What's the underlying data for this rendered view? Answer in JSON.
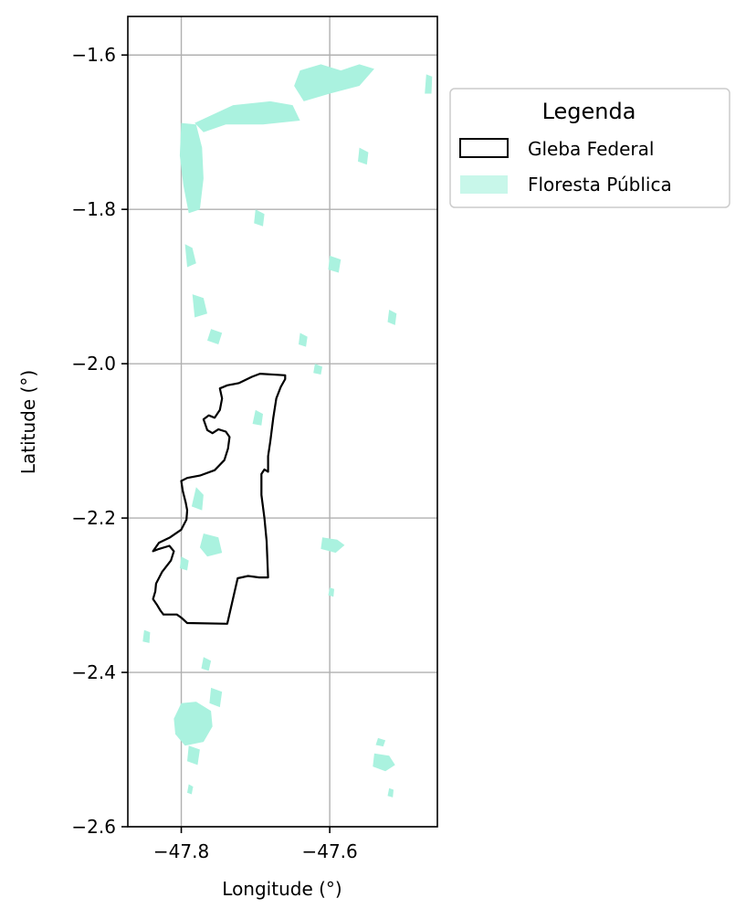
{
  "map": {
    "xlabel": "Longitude (°)",
    "ylabel": "Latitude (°)",
    "xlim": [
      -47.872,
      -47.455
    ],
    "ylim": [
      -2.6,
      -1.55
    ],
    "x_ticks": [
      -47.8,
      -47.6
    ],
    "x_tick_labels": [
      "−47.8",
      "−47.6"
    ],
    "y_ticks": [
      -1.6,
      -1.8,
      -2.0,
      -2.2,
      -2.4,
      -2.6
    ],
    "y_tick_labels": [
      "−1.6",
      "−1.8",
      "−2.0",
      "−2.2",
      "−2.4",
      "−2.6"
    ],
    "grid": true,
    "colors": {
      "forest": "#aaf2df",
      "gleba": "#000000",
      "grid": "#b0b0b0"
    },
    "gleba_federal": [
      [
        -47.694,
        -2.013
      ],
      [
        -47.66,
        -2.015
      ],
      [
        -47.66,
        -2.02
      ],
      [
        -47.666,
        -2.03
      ],
      [
        -47.672,
        -2.045
      ],
      [
        -47.676,
        -2.07
      ],
      [
        -47.68,
        -2.1
      ],
      [
        -47.683,
        -2.12
      ],
      [
        -47.683,
        -2.14
      ],
      [
        -47.688,
        -2.137
      ],
      [
        -47.692,
        -2.143
      ],
      [
        -47.692,
        -2.17
      ],
      [
        -47.688,
        -2.2
      ],
      [
        -47.685,
        -2.23
      ],
      [
        -47.683,
        -2.277
      ],
      [
        -47.695,
        -2.277
      ],
      [
        -47.71,
        -2.275
      ],
      [
        -47.724,
        -2.278
      ],
      [
        -47.738,
        -2.337
      ],
      [
        -47.792,
        -2.336
      ],
      [
        -47.8,
        -2.329
      ],
      [
        -47.806,
        -2.325
      ],
      [
        -47.824,
        -2.325
      ],
      [
        -47.828,
        -2.32
      ],
      [
        -47.833,
        -2.312
      ],
      [
        -47.838,
        -2.305
      ],
      [
        -47.835,
        -2.295
      ],
      [
        -47.834,
        -2.285
      ],
      [
        -47.826,
        -2.27
      ],
      [
        -47.814,
        -2.255
      ],
      [
        -47.81,
        -2.243
      ],
      [
        -47.816,
        -2.236
      ],
      [
        -47.83,
        -2.24
      ],
      [
        -47.838,
        -2.243
      ],
      [
        -47.83,
        -2.232
      ],
      [
        -47.815,
        -2.225
      ],
      [
        -47.8,
        -2.215
      ],
      [
        -47.793,
        -2.202
      ],
      [
        -47.792,
        -2.19
      ],
      [
        -47.794,
        -2.18
      ],
      [
        -47.798,
        -2.165
      ],
      [
        -47.8,
        -2.152
      ],
      [
        -47.792,
        -2.148
      ],
      [
        -47.775,
        -2.145
      ],
      [
        -47.755,
        -2.138
      ],
      [
        -47.742,
        -2.125
      ],
      [
        -47.737,
        -2.11
      ],
      [
        -47.735,
        -2.095
      ],
      [
        -47.74,
        -2.088
      ],
      [
        -47.75,
        -2.085
      ],
      [
        -47.758,
        -2.09
      ],
      [
        -47.765,
        -2.086
      ],
      [
        -47.77,
        -2.072
      ],
      [
        -47.763,
        -2.067
      ],
      [
        -47.755,
        -2.07
      ],
      [
        -47.748,
        -2.06
      ],
      [
        -47.745,
        -2.045
      ],
      [
        -47.748,
        -2.032
      ],
      [
        -47.738,
        -2.028
      ],
      [
        -47.722,
        -2.025
      ],
      [
        -47.705,
        -2.017
      ],
      [
        -47.694,
        -2.013
      ]
    ],
    "floresta_publica_patches": [
      [
        [
          -47.8,
          -1.688
        ],
        [
          -47.78,
          -1.69
        ],
        [
          -47.772,
          -1.72
        ],
        [
          -47.77,
          -1.76
        ],
        [
          -47.775,
          -1.8
        ],
        [
          -47.79,
          -1.805
        ],
        [
          -47.797,
          -1.77
        ],
        [
          -47.802,
          -1.73
        ]
      ],
      [
        [
          -47.782,
          -1.688
        ],
        [
          -47.73,
          -1.665
        ],
        [
          -47.68,
          -1.66
        ],
        [
          -47.65,
          -1.665
        ],
        [
          -47.64,
          -1.685
        ],
        [
          -47.69,
          -1.69
        ],
        [
          -47.74,
          -1.69
        ],
        [
          -47.77,
          -1.7
        ]
      ],
      [
        [
          -47.64,
          -1.62
        ],
        [
          -47.612,
          -1.612
        ],
        [
          -47.585,
          -1.62
        ],
        [
          -47.56,
          -1.612
        ],
        [
          -47.54,
          -1.618
        ],
        [
          -47.56,
          -1.64
        ],
        [
          -47.6,
          -1.65
        ],
        [
          -47.635,
          -1.66
        ],
        [
          -47.648,
          -1.64
        ]
      ],
      [
        [
          -47.47,
          -1.625
        ],
        [
          -47.462,
          -1.628
        ],
        [
          -47.463,
          -1.65
        ],
        [
          -47.472,
          -1.65
        ]
      ],
      [
        [
          -47.795,
          -1.845
        ],
        [
          -47.785,
          -1.85
        ],
        [
          -47.78,
          -1.87
        ],
        [
          -47.792,
          -1.875
        ]
      ],
      [
        [
          -47.785,
          -1.91
        ],
        [
          -47.77,
          -1.915
        ],
        [
          -47.765,
          -1.935
        ],
        [
          -47.782,
          -1.94
        ]
      ],
      [
        [
          -47.76,
          -1.955
        ],
        [
          -47.745,
          -1.96
        ],
        [
          -47.75,
          -1.975
        ],
        [
          -47.765,
          -1.97
        ]
      ],
      [
        [
          -47.7,
          -2.06
        ],
        [
          -47.69,
          -2.065
        ],
        [
          -47.692,
          -2.08
        ],
        [
          -47.704,
          -2.078
        ]
      ],
      [
        [
          -47.78,
          -2.16
        ],
        [
          -47.77,
          -2.17
        ],
        [
          -47.772,
          -2.19
        ],
        [
          -47.786,
          -2.185
        ]
      ],
      [
        [
          -47.77,
          -2.22
        ],
        [
          -47.75,
          -2.225
        ],
        [
          -47.745,
          -2.245
        ],
        [
          -47.765,
          -2.25
        ],
        [
          -47.775,
          -2.238
        ]
      ],
      [
        [
          -47.8,
          -2.25
        ],
        [
          -47.79,
          -2.255
        ],
        [
          -47.792,
          -2.268
        ],
        [
          -47.802,
          -2.265
        ]
      ],
      [
        [
          -47.61,
          -2.225
        ],
        [
          -47.59,
          -2.228
        ],
        [
          -47.58,
          -2.235
        ],
        [
          -47.592,
          -2.245
        ],
        [
          -47.612,
          -2.24
        ]
      ],
      [
        [
          -47.76,
          -2.42
        ],
        [
          -47.745,
          -2.425
        ],
        [
          -47.748,
          -2.445
        ],
        [
          -47.762,
          -2.44
        ]
      ],
      [
        [
          -47.8,
          -2.44
        ],
        [
          -47.78,
          -2.438
        ],
        [
          -47.76,
          -2.45
        ],
        [
          -47.758,
          -2.47
        ],
        [
          -47.77,
          -2.49
        ],
        [
          -47.795,
          -2.495
        ],
        [
          -47.808,
          -2.48
        ],
        [
          -47.81,
          -2.46
        ]
      ],
      [
        [
          -47.79,
          -2.495
        ],
        [
          -47.775,
          -2.5
        ],
        [
          -47.778,
          -2.52
        ],
        [
          -47.792,
          -2.515
        ]
      ],
      [
        [
          -47.54,
          -2.505
        ],
        [
          -47.52,
          -2.508
        ],
        [
          -47.512,
          -2.52
        ],
        [
          -47.525,
          -2.528
        ],
        [
          -47.542,
          -2.522
        ]
      ],
      [
        [
          -47.535,
          -2.485
        ],
        [
          -47.525,
          -2.488
        ],
        [
          -47.528,
          -2.496
        ],
        [
          -47.538,
          -2.494
        ]
      ],
      [
        [
          -47.85,
          -2.345
        ],
        [
          -47.842,
          -2.348
        ],
        [
          -47.843,
          -2.362
        ],
        [
          -47.852,
          -2.36
        ]
      ],
      [
        [
          -47.77,
          -2.38
        ],
        [
          -47.76,
          -2.385
        ],
        [
          -47.763,
          -2.398
        ],
        [
          -47.773,
          -2.395
        ]
      ],
      [
        [
          -47.64,
          -1.96
        ],
        [
          -47.63,
          -1.965
        ],
        [
          -47.632,
          -1.978
        ],
        [
          -47.642,
          -1.975
        ]
      ],
      [
        [
          -47.52,
          -1.93
        ],
        [
          -47.51,
          -1.935
        ],
        [
          -47.512,
          -1.95
        ],
        [
          -47.522,
          -1.946
        ]
      ],
      [
        [
          -47.6,
          -1.86
        ],
        [
          -47.585,
          -1.865
        ],
        [
          -47.588,
          -1.882
        ],
        [
          -47.602,
          -1.878
        ]
      ],
      [
        [
          -47.7,
          -1.8
        ],
        [
          -47.688,
          -1.806
        ],
        [
          -47.69,
          -1.822
        ],
        [
          -47.702,
          -1.818
        ]
      ],
      [
        [
          -47.56,
          -1.72
        ],
        [
          -47.548,
          -1.726
        ],
        [
          -47.55,
          -1.742
        ],
        [
          -47.562,
          -1.738
        ]
      ],
      [
        [
          -47.62,
          -2.0
        ],
        [
          -47.61,
          -2.004
        ],
        [
          -47.612,
          -2.014
        ],
        [
          -47.622,
          -2.012
        ]
      ],
      [
        [
          -47.6,
          -2.29
        ],
        [
          -47.594,
          -2.292
        ],
        [
          -47.595,
          -2.302
        ],
        [
          -47.602,
          -2.3
        ]
      ],
      [
        [
          -47.79,
          -2.545
        ],
        [
          -47.784,
          -2.548
        ],
        [
          -47.786,
          -2.558
        ],
        [
          -47.792,
          -2.556
        ]
      ],
      [
        [
          -47.52,
          -2.55
        ],
        [
          -47.514,
          -2.552
        ],
        [
          -47.515,
          -2.562
        ],
        [
          -47.522,
          -2.56
        ]
      ]
    ]
  },
  "legend": {
    "title": "Legenda",
    "items": [
      {
        "label": "Gleba Federal",
        "kind": "outline"
      },
      {
        "label": "Floresta Pública",
        "kind": "fill"
      }
    ]
  }
}
